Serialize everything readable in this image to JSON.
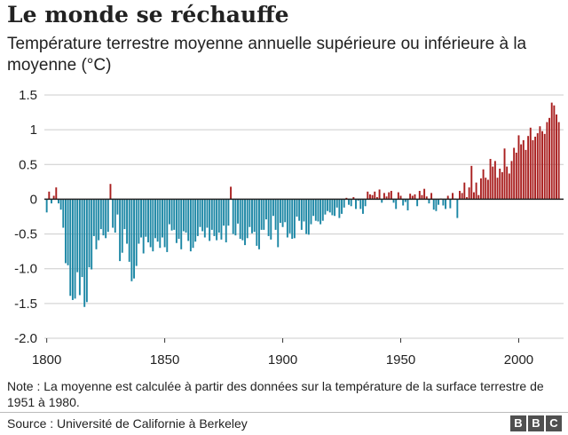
{
  "header": {
    "title": "Le monde se réchauffe",
    "subtitle": "Température terrestre moyenne annuelle supérieure ou inférieure à la moyenne (°C)"
  },
  "footer": {
    "note": "Note : La moyenne est calculée à partir des données sur la température de la surface terrestre de 1951 à 1980.",
    "source": "Source : Université de Californie à Berkeley",
    "logo_letters": [
      "B",
      "B",
      "C"
    ]
  },
  "colors": {
    "positive": "#a91f1f",
    "negative": "#1c87a5",
    "gridline": "#cccccc",
    "zero_line": "#222222"
  },
  "chart_data": {
    "type": "bar",
    "title": "Le monde se réchauffe",
    "subtitle": "Température terrestre moyenne annuelle supérieure ou inférieure à la moyenne (°C)",
    "xlabel": "",
    "ylabel": "",
    "x_ticks": [
      1800,
      1850,
      1900,
      1950,
      2000
    ],
    "y_ticks": [
      1.5,
      1,
      0.5,
      0,
      -0.5,
      -1.0,
      -1.5,
      -2.0
    ],
    "y_tick_labels": [
      "1.5",
      "1",
      "0.5",
      "0",
      "-0.5",
      "-1.0",
      "-1.5",
      "-2.0"
    ],
    "ylim": [
      -2.0,
      1.5
    ],
    "xlim": [
      1799,
      2019
    ],
    "grid": true,
    "legend": "none",
    "x_start": 1800,
    "values": [
      -0.19,
      0.11,
      -0.06,
      0.05,
      0.17,
      -0.06,
      -0.15,
      -0.41,
      -0.92,
      -0.95,
      -1.39,
      -1.45,
      -1.43,
      -1.05,
      -1.38,
      -1.12,
      -1.55,
      -1.48,
      -0.98,
      -1.01,
      -0.53,
      -0.72,
      -0.59,
      -0.43,
      -0.52,
      -0.56,
      -0.47,
      0.22,
      -0.41,
      -0.48,
      -0.22,
      -0.89,
      -0.77,
      -0.43,
      -0.64,
      -0.9,
      -1.18,
      -1.14,
      -0.96,
      -0.64,
      -0.55,
      -0.78,
      -0.54,
      -0.62,
      -0.69,
      -0.75,
      -0.56,
      -0.61,
      -0.7,
      -0.55,
      -0.69,
      -0.76,
      -0.36,
      -0.45,
      -0.44,
      -0.63,
      -0.57,
      -0.72,
      -0.46,
      -0.48,
      -0.6,
      -0.75,
      -0.7,
      -0.61,
      -0.53,
      -0.4,
      -0.46,
      -0.55,
      -0.41,
      -0.6,
      -0.44,
      -0.53,
      -0.59,
      -0.48,
      -0.58,
      -0.38,
      -0.62,
      -0.38,
      0.18,
      -0.5,
      -0.52,
      -0.35,
      -0.57,
      -0.59,
      -0.66,
      -0.56,
      -0.4,
      -0.49,
      -0.47,
      -0.67,
      -0.72,
      -0.44,
      -0.44,
      -0.29,
      -0.53,
      -0.58,
      -0.24,
      -0.44,
      -0.69,
      -0.34,
      -0.4,
      -0.33,
      -0.55,
      -0.49,
      -0.57,
      -0.56,
      -0.25,
      -0.31,
      -0.44,
      -0.32,
      -0.5,
      -0.51,
      -0.36,
      -0.24,
      -0.31,
      -0.32,
      -0.36,
      -0.31,
      -0.22,
      -0.17,
      -0.19,
      -0.23,
      -0.24,
      -0.12,
      -0.27,
      -0.21,
      -0.12,
      0.02,
      -0.08,
      -0.1,
      0.03,
      -0.14,
      -0.02,
      -0.14,
      -0.21,
      -0.1,
      0.11,
      0.07,
      0.06,
      0.11,
      0.03,
      0.14,
      -0.05,
      0.09,
      0.04,
      0.1,
      0.12,
      -0.05,
      -0.14,
      0.1,
      0.05,
      -0.09,
      -0.04,
      -0.16,
      0.08,
      0.05,
      0.07,
      -0.1,
      0.12,
      0.06,
      0.15,
      0.04,
      -0.06,
      0.09,
      -0.15,
      -0.17,
      -0.08,
      0.01,
      -0.09,
      -0.14,
      0.05,
      -0.13,
      0.09,
      0.01,
      -0.27,
      0.12,
      0.09,
      0.24,
      0.03,
      0.17,
      0.48,
      0.1,
      0.24,
      0.06,
      0.3,
      0.43,
      0.31,
      0.28,
      0.58,
      0.47,
      0.55,
      0.31,
      0.44,
      0.39,
      0.73,
      0.47,
      0.37,
      0.55,
      0.74,
      0.67,
      0.92,
      0.79,
      0.85,
      0.71,
      0.91,
      1.03,
      0.85,
      0.9,
      0.95,
      1.05,
      0.98,
      0.94,
      1.11,
      1.17,
      1.39,
      1.35,
      1.22,
      1.11
    ]
  }
}
